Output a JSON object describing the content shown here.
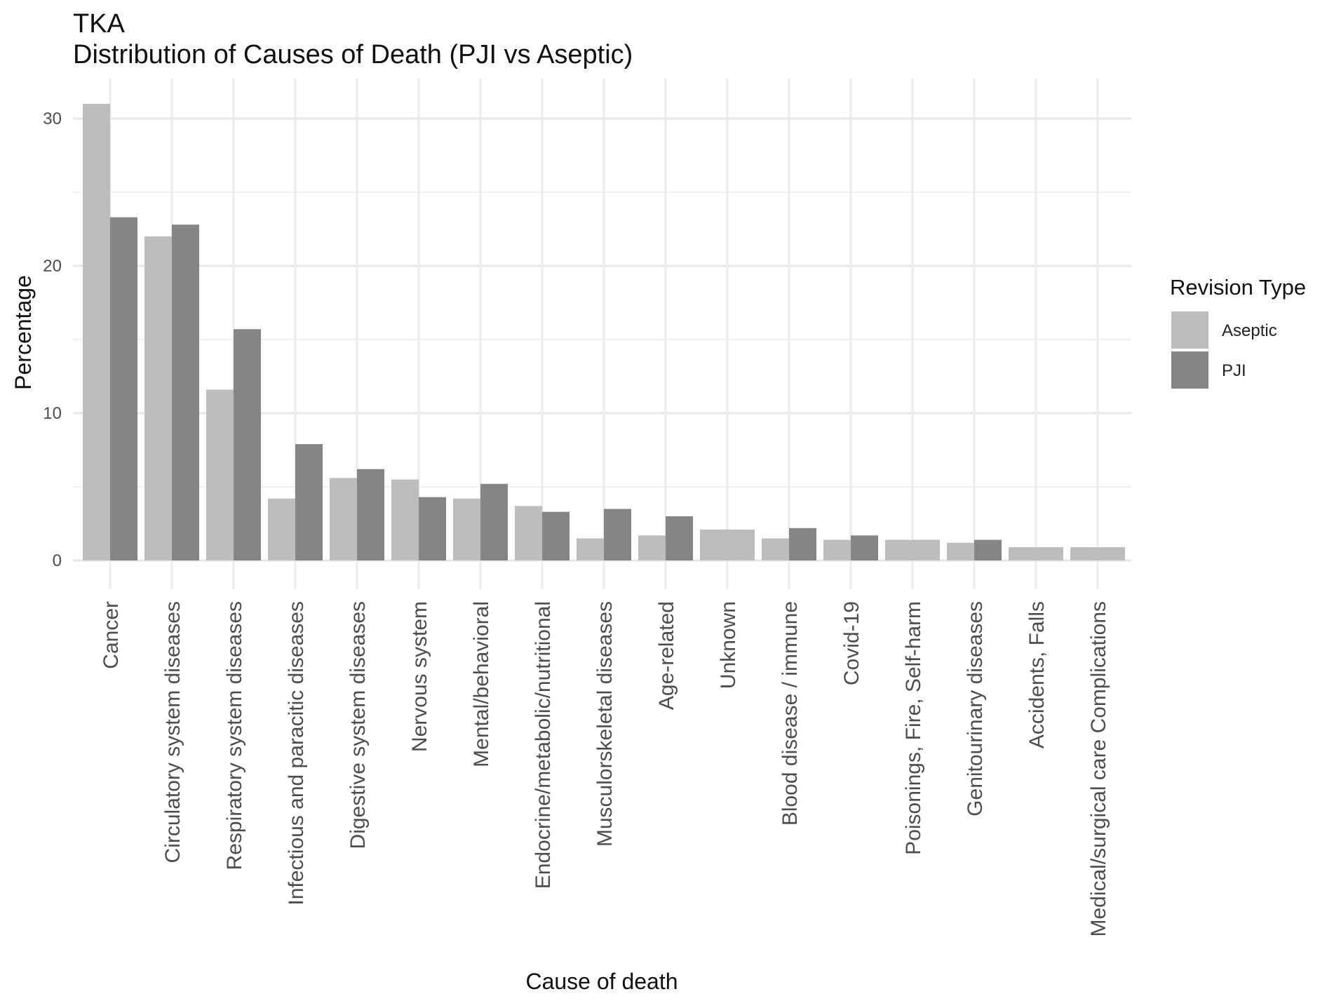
{
  "chart_data": {
    "type": "bar",
    "title": "TKA",
    "subtitle": "Distribution of Causes of Death (PJI vs Aseptic)",
    "xlabel": "Cause of death",
    "ylabel": "Percentage",
    "ylim": [
      0,
      32
    ],
    "yticks": [
      0,
      10,
      20,
      30
    ],
    "grid": true,
    "legend": {
      "title": "Revision Type",
      "position": "right"
    },
    "categories": [
      "Cancer",
      "Circulatory system diseases",
      "Respiratory system diseases",
      "Infectious and paracitic diseases",
      "Digestive system diseases",
      "Nervous system",
      "Mental/behavioral",
      "Endocrine/metabolic/nutritional",
      "Musculorskeletal diseases",
      "Age-related",
      "Unknown",
      "Blood disease / immune",
      "Covid-19",
      "Poisonings, Fire, Self-harm",
      "Genitourinary diseases",
      "Accidents, Falls",
      "Medical/surgical care Complications"
    ],
    "series": [
      {
        "name": "Aseptic",
        "color": "#bdbdbd",
        "values": [
          31.0,
          22.0,
          11.6,
          4.2,
          5.6,
          5.5,
          4.2,
          3.7,
          1.5,
          1.7,
          2.1,
          1.5,
          1.4,
          1.4,
          1.2,
          0.9,
          0.9
        ]
      },
      {
        "name": "PJI",
        "color": "#858585",
        "values": [
          23.3,
          22.8,
          15.7,
          7.9,
          6.2,
          4.3,
          5.2,
          3.3,
          3.5,
          3.0,
          null,
          2.2,
          1.7,
          null,
          1.4,
          null,
          null
        ]
      }
    ]
  }
}
